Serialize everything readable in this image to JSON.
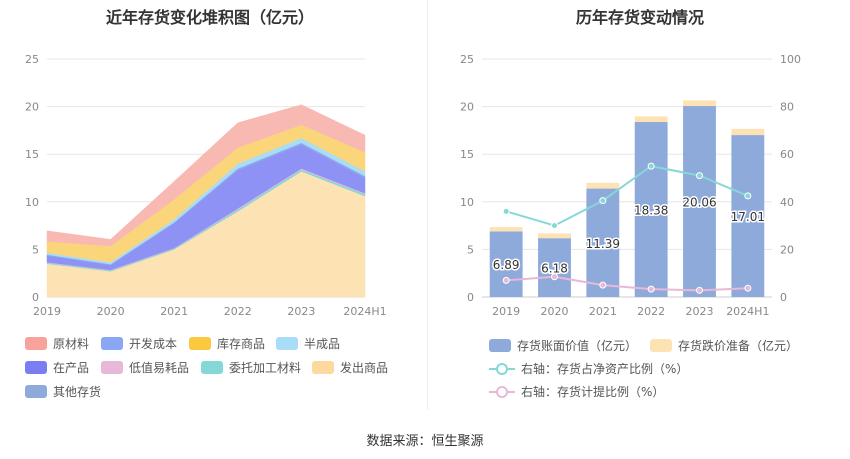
{
  "chart_data": [
    {
      "type": "area",
      "stacked": true,
      "title": "近年存货变化堆积图（亿元）",
      "categories": [
        "2019",
        "2020",
        "2021",
        "2022",
        "2023",
        "2024H1"
      ],
      "ylim": [
        0,
        25
      ],
      "yticks": [
        0,
        5,
        10,
        15,
        20,
        25
      ],
      "series": [
        {
          "name": "发出商品",
          "color": "#fde3b4",
          "values": [
            3.5,
            2.7,
            5.0,
            9.0,
            13.2,
            10.6
          ]
        },
        {
          "name": "委托加工材料",
          "color": "#86d7d8",
          "values": [
            0.1,
            0.1,
            0.1,
            0.2,
            0.2,
            0.2
          ]
        },
        {
          "name": "低值易耗品",
          "color": "#e8b8d8",
          "values": [
            0.05,
            0.05,
            0.05,
            0.1,
            0.1,
            0.1
          ]
        },
        {
          "name": "在产品",
          "color": "#8f92f5",
          "values": [
            0.7,
            0.5,
            2.6,
            4.0,
            2.5,
            1.6
          ]
        },
        {
          "name": "其他存货",
          "color": "#8eaadb",
          "values": [
            0.05,
            0.05,
            0.05,
            0.1,
            0.1,
            0.1
          ]
        },
        {
          "name": "开发成本",
          "color": "#8aa6f5",
          "values": [
            0.05,
            0.05,
            0.05,
            0.1,
            0.1,
            0.1
          ]
        },
        {
          "name": "半成品",
          "color": "#a9dcf7",
          "values": [
            0.2,
            0.2,
            0.3,
            0.5,
            0.5,
            0.5
          ]
        },
        {
          "name": "库存商品",
          "color": "#fbd57a",
          "values": [
            1.2,
            1.7,
            2.1,
            1.7,
            1.4,
            2.0
          ]
        },
        {
          "name": "原材料",
          "color": "#f9b9b3",
          "values": [
            1.1,
            0.7,
            1.9,
            2.6,
            2.1,
            1.8
          ]
        }
      ],
      "legend": [
        {
          "name": "原材料",
          "color": "#f7a39b"
        },
        {
          "name": "开发成本",
          "color": "#8aa6f5"
        },
        {
          "name": "库存商品",
          "color": "#fbc93f"
        },
        {
          "name": "半成品",
          "color": "#a9dcf7"
        },
        {
          "name": "在产品",
          "color": "#7b7ef3"
        },
        {
          "name": "低值易耗品",
          "color": "#e8b8d8"
        },
        {
          "name": "委托加工材料",
          "color": "#86d7d8"
        },
        {
          "name": "发出商品",
          "color": "#fdd9a0"
        },
        {
          "name": "其他存货",
          "color": "#8eaadb"
        }
      ]
    },
    {
      "type": "bar",
      "stacked": true,
      "title": "历年存货变动情况",
      "categories": [
        "2019",
        "2020",
        "2021",
        "2022",
        "2023",
        "2024H1"
      ],
      "ylim": [
        0,
        25
      ],
      "yticks": [
        0,
        5,
        10,
        15,
        20,
        25
      ],
      "y2lim": [
        0,
        100
      ],
      "y2ticks": [
        0,
        20,
        40,
        60,
        80,
        100
      ],
      "series": [
        {
          "name": "存货账面价值（亿元）",
          "color": "#8eaadb",
          "values": [
            6.89,
            6.18,
            11.39,
            18.38,
            20.06,
            17.01
          ],
          "labels": [
            "6.89",
            "6.18",
            "11.39",
            "18.38",
            "20.06",
            "17.01"
          ]
        },
        {
          "name": "存货跌价准备（亿元）",
          "color": "#fde3b4",
          "values": [
            0.45,
            0.5,
            0.6,
            0.6,
            0.6,
            0.65
          ]
        }
      ],
      "lines": [
        {
          "name": "右轴：存货占净资产比例（%）",
          "color": "#86d7d8",
          "axis": "right",
          "values": [
            36,
            30,
            40.5,
            55,
            51,
            42.5
          ]
        },
        {
          "name": "右轴：存货计提比例（%）",
          "color": "#e8b8d8",
          "axis": "right",
          "values": [
            7,
            8.5,
            5,
            3.3,
            2.8,
            3.7
          ]
        }
      ]
    }
  ],
  "footer": {
    "source": "数据来源：恒生聚源"
  }
}
